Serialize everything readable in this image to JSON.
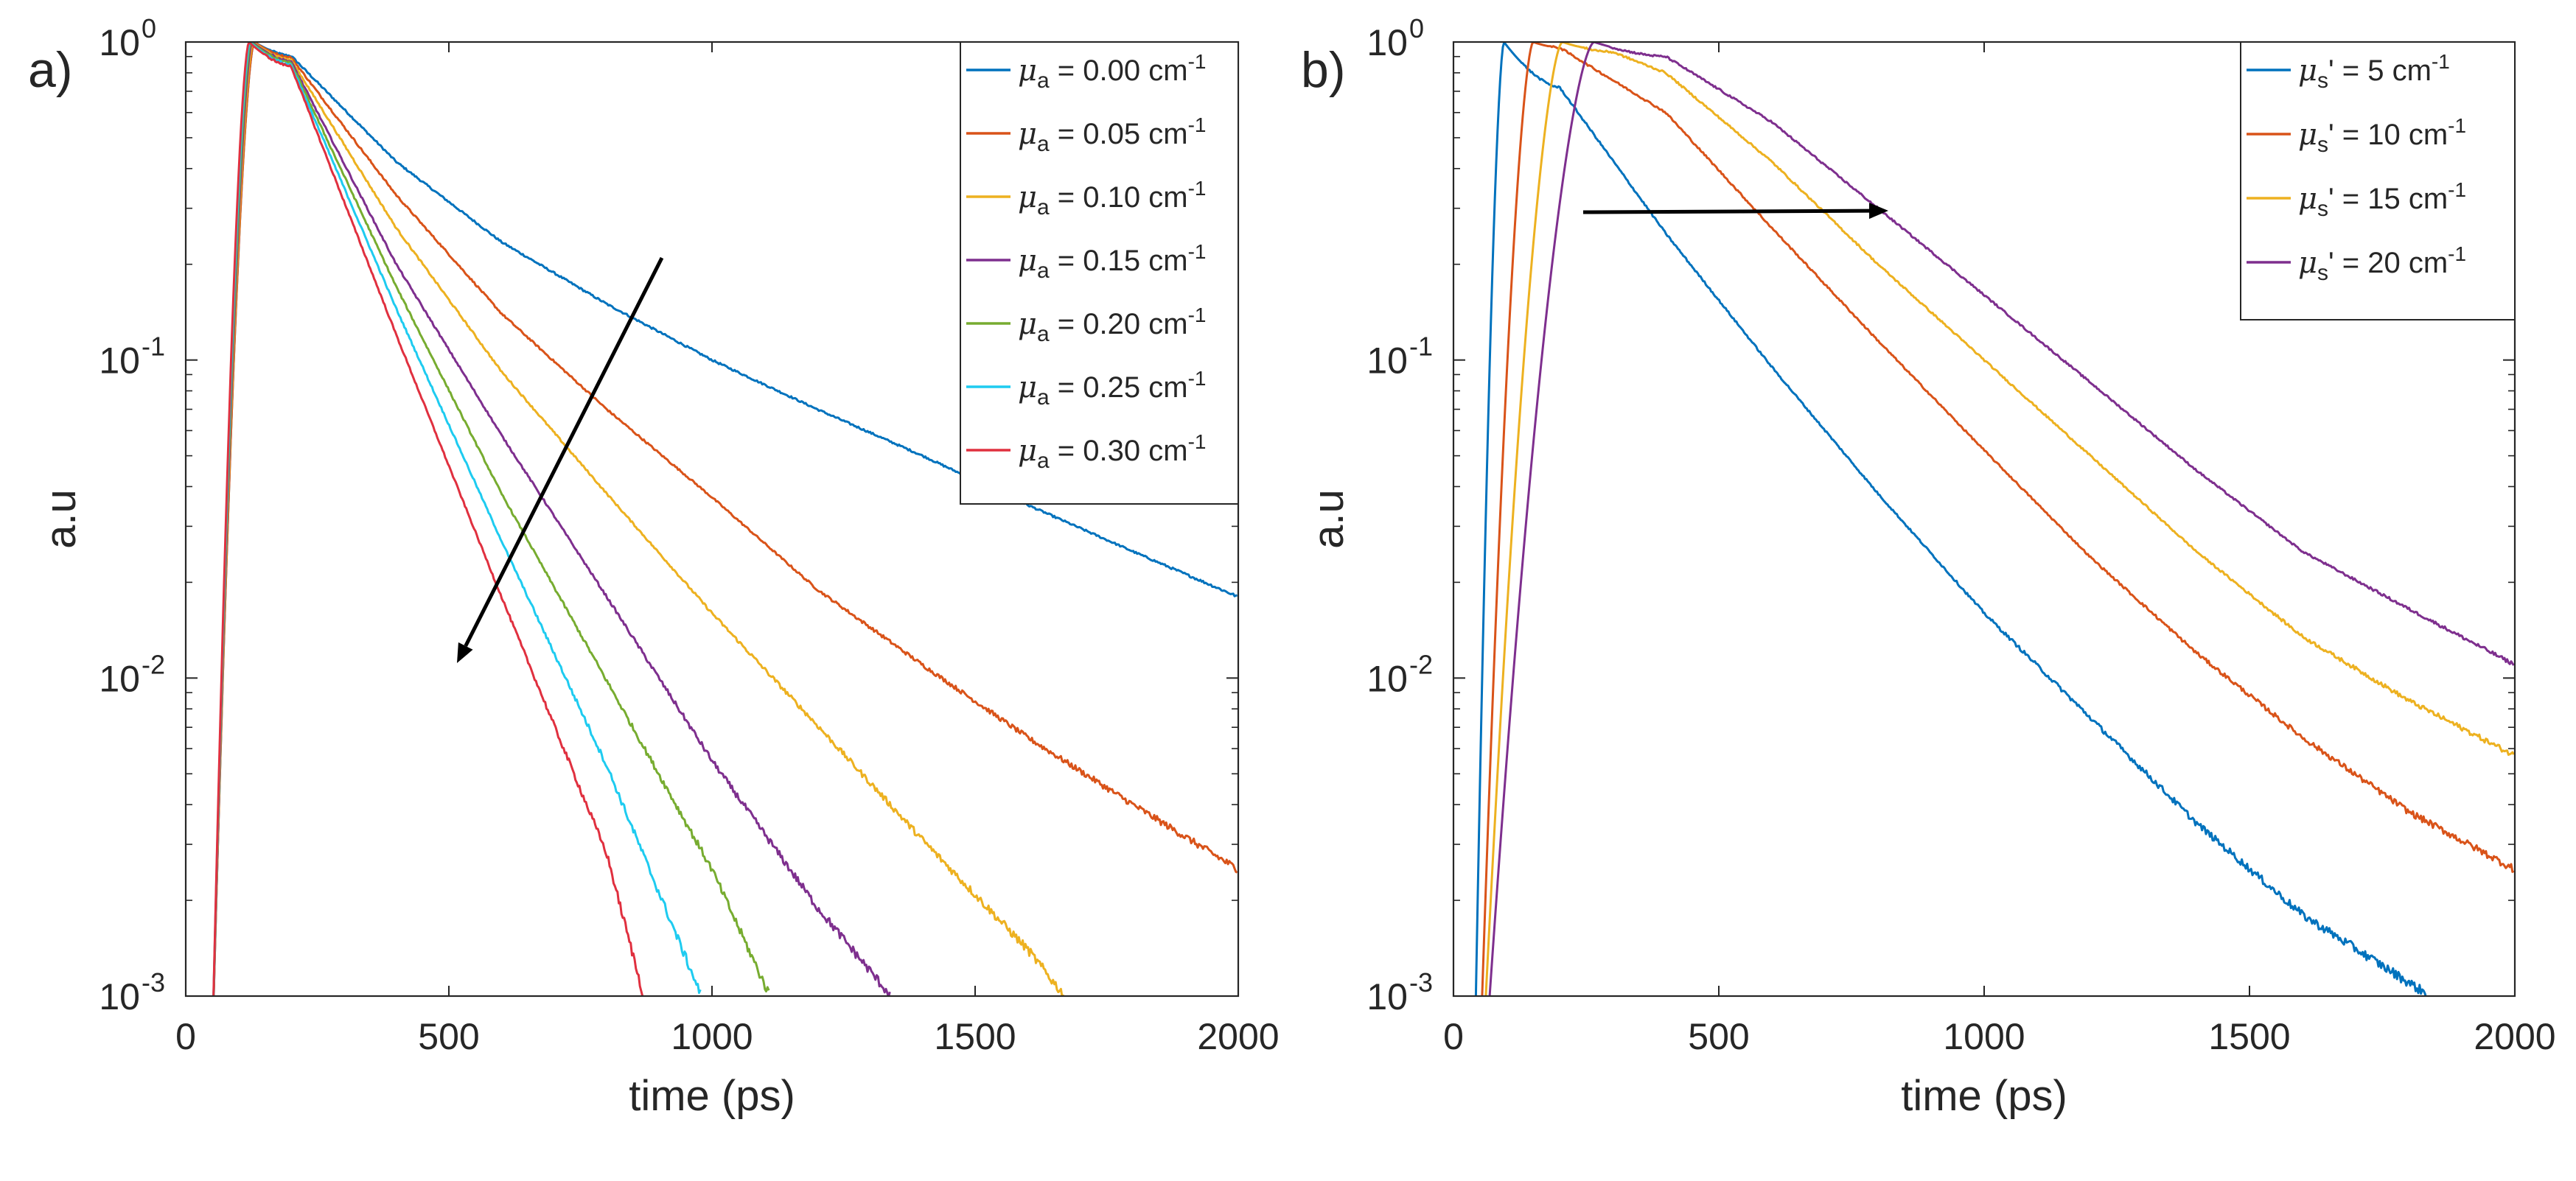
{
  "chart_data": [
    {
      "type": "line",
      "panel_label": "a)",
      "xlabel": "time (ps)",
      "ylabel": "a.u",
      "xlim": [
        0,
        2000
      ],
      "ylim": [
        0.001,
        1
      ],
      "yscale": "log",
      "xticks": [
        0,
        500,
        1000,
        1500,
        2000
      ],
      "yticks": [
        {
          "base": "10",
          "exp": "0",
          "value": 1
        },
        {
          "base": "10",
          "exp": "-1",
          "value": 0.1
        },
        {
          "base": "10",
          "exp": "-2",
          "value": 0.01
        },
        {
          "base": "10",
          "exp": "-3",
          "value": 0.001
        }
      ],
      "legend_position": "top-right",
      "annotation": "arrow pointing down-left (increasing absorption)",
      "series": [
        {
          "name": "μa = 0.00 cm-1",
          "sym": "μ",
          "sub": "a",
          "prime": "",
          "eq": " = 0.00 cm",
          "sup": "-1",
          "color": "#0072BD",
          "t0": 50,
          "tpeak": 130,
          "points": [
            [
              200,
              0.905
            ],
            [
              400,
              0.42
            ],
            [
              600,
              0.235
            ],
            [
              800,
              0.15
            ],
            [
              1000,
              0.1
            ],
            [
              1200,
              0.07
            ],
            [
              1400,
              0.05
            ],
            [
              1600,
              0.035
            ],
            [
              1800,
              0.025
            ],
            [
              2000,
              0.018
            ]
          ]
        },
        {
          "name": "μa = 0.05 cm-1",
          "sym": "μ",
          "sub": "a",
          "prime": "",
          "eq": " = 0.05 cm",
          "sup": "-1",
          "color": "#D95319",
          "t0": 50,
          "tpeak": 130,
          "points": [
            [
              200,
              0.895
            ],
            [
              400,
              0.33
            ],
            [
              600,
              0.14
            ],
            [
              800,
              0.07
            ],
            [
              1000,
              0.037
            ],
            [
              1200,
              0.019
            ],
            [
              1400,
              0.011
            ],
            [
              1600,
              0.0065
            ],
            [
              1800,
              0.004
            ],
            [
              2000,
              0.0025
            ]
          ]
        },
        {
          "name": "μa = 0.10 cm-1",
          "sym": "μ",
          "sub": "a",
          "prime": "",
          "eq": " = 0.10 cm",
          "sup": "-1",
          "color": "#EDB120",
          "t0": 50,
          "tpeak": 128,
          "points": [
            [
              200,
              0.88
            ],
            [
              400,
              0.26
            ],
            [
              600,
              0.092
            ],
            [
              800,
              0.038
            ],
            [
              1000,
              0.016
            ],
            [
              1200,
              0.0071
            ],
            [
              1400,
              0.0031
            ],
            [
              1600,
              0.0014
            ],
            [
              1670,
              0.001
            ]
          ]
        },
        {
          "name": "μa = 0.15 cm-1",
          "sym": "μ",
          "sub": "a",
          "prime": "",
          "eq": " = 0.15 cm",
          "sup": "-1",
          "color": "#7E2F8E",
          "t0": 50,
          "tpeak": 126,
          "points": [
            [
              200,
              0.87
            ],
            [
              400,
              0.2
            ],
            [
              600,
              0.058
            ],
            [
              800,
              0.018
            ],
            [
              1000,
              0.0055
            ],
            [
              1200,
              0.0019
            ],
            [
              1340,
              0.001
            ]
          ]
        },
        {
          "name": "μa = 0.20 cm-1",
          "sym": "μ",
          "sub": "a",
          "prime": "",
          "eq": " = 0.20 cm",
          "sup": "-1",
          "color": "#77AC30",
          "t0": 50,
          "tpeak": 124,
          "points": [
            [
              200,
              0.86
            ],
            [
              400,
              0.17
            ],
            [
              600,
              0.038
            ],
            [
              800,
              0.0098
            ],
            [
              1000,
              0.0025
            ],
            [
              1110,
              0.001
            ]
          ]
        },
        {
          "name": "μa = 0.25 cm-1",
          "sym": "μ",
          "sub": "a",
          "prime": "",
          "eq": " = 0.25 cm",
          "sup": "-1",
          "color": "#1ECBF0",
          "t0": 50,
          "tpeak": 122,
          "points": [
            [
              200,
              0.85
            ],
            [
              400,
              0.145
            ],
            [
              600,
              0.027
            ],
            [
              800,
              0.0053
            ],
            [
              980,
              0.001
            ]
          ]
        },
        {
          "name": "μa = 0.30 cm-1",
          "sym": "μ",
          "sub": "a",
          "prime": "",
          "eq": " = 0.30 cm",
          "sup": "-1",
          "color": "#E0303F",
          "t0": 50,
          "tpeak": 120,
          "points": [
            [
              200,
              0.84
            ],
            [
              400,
              0.12
            ],
            [
              600,
              0.018
            ],
            [
              800,
              0.0028
            ],
            [
              870,
              0.001
            ]
          ]
        }
      ]
    },
    {
      "type": "line",
      "panel_label": "b)",
      "xlabel": "time (ps)",
      "ylabel": "a.u",
      "xlim": [
        0,
        2000
      ],
      "ylim": [
        0.001,
        1
      ],
      "yscale": "log",
      "xticks": [
        0,
        500,
        1000,
        1500,
        2000
      ],
      "yticks": [
        {
          "base": "10",
          "exp": "0",
          "value": 1
        },
        {
          "base": "10",
          "exp": "-1",
          "value": 0.1
        },
        {
          "base": "10",
          "exp": "-2",
          "value": 0.01
        },
        {
          "base": "10",
          "exp": "-3",
          "value": 0.001
        }
      ],
      "legend_position": "top-right",
      "annotation": "arrow pointing right (increasing scattering)",
      "series": [
        {
          "name": "μs' = 5 cm-1",
          "sym": "μ",
          "sub": "s",
          "prime": "'",
          "eq": " =  5 cm",
          "sup": "-1",
          "color": "#0072BD",
          "t0": 40,
          "tpeak": 95,
          "points": [
            [
              200,
              0.72
            ],
            [
              400,
              0.25
            ],
            [
              600,
              0.095
            ],
            [
              800,
              0.038
            ],
            [
              1000,
              0.016
            ],
            [
              1200,
              0.0075
            ],
            [
              1400,
              0.0035
            ],
            [
              1600,
              0.0018
            ],
            [
              1840,
              0.001
            ]
          ]
        },
        {
          "name": "μs' = 10 cm-1",
          "sym": "μ",
          "sub": "s",
          "prime": "'",
          "eq": " = 10 cm",
          "sup": "-1",
          "color": "#D95319",
          "t0": 50,
          "tpeak": 150,
          "points": [
            [
              200,
              0.96
            ],
            [
              400,
              0.6
            ],
            [
              600,
              0.26
            ],
            [
              800,
              0.115
            ],
            [
              1000,
              0.052
            ],
            [
              1200,
              0.024
            ],
            [
              1400,
              0.012
            ],
            [
              1600,
              0.0065
            ],
            [
              1800,
              0.0038
            ],
            [
              2000,
              0.0025
            ]
          ]
        },
        {
          "name": "μs' = 15 cm-1",
          "sym": "μ",
          "sub": "s",
          "prime": "'",
          "eq": " = 15 cm",
          "sup": "-1",
          "color": "#EDB120",
          "t0": 55,
          "tpeak": 205,
          "points": [
            [
              300,
              0.93
            ],
            [
              400,
              0.8
            ],
            [
              600,
              0.42
            ],
            [
              800,
              0.2
            ],
            [
              1000,
              0.1
            ],
            [
              1200,
              0.05
            ],
            [
              1400,
              0.025
            ],
            [
              1600,
              0.0135
            ],
            [
              1800,
              0.0085
            ],
            [
              2000,
              0.0057
            ]
          ]
        },
        {
          "name": "μs' = 20 cm-1",
          "sym": "μ",
          "sub": "s",
          "prime": "'",
          "eq": " = 20 cm",
          "sup": "-1",
          "color": "#7E2F8E",
          "t0": 60,
          "tpeak": 265,
          "points": [
            [
              400,
              0.9
            ],
            [
              600,
              0.56
            ],
            [
              800,
              0.3
            ],
            [
              1000,
              0.16
            ],
            [
              1200,
              0.085
            ],
            [
              1400,
              0.045
            ],
            [
              1600,
              0.025
            ],
            [
              1800,
              0.0165
            ],
            [
              2000,
              0.011
            ]
          ]
        }
      ]
    }
  ]
}
